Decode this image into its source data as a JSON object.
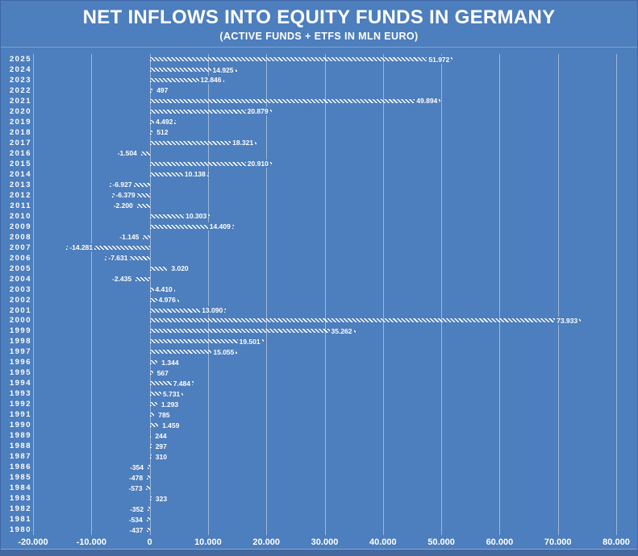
{
  "title": "NET INFLOWS INTO EQUITY FUNDS IN GERMANY",
  "subtitle": "(ACTIVE FUNDS + ETFS IN MLN EURO)",
  "colors": {
    "background": "#4d7ebd",
    "bar": "#ffffff",
    "text": "#ffffff",
    "gridline": "rgba(255,255,255,0.45)",
    "bottom_strip": "#45699e"
  },
  "chart_data": {
    "type": "bar",
    "orientation": "horizontal",
    "title": "NET INFLOWS INTO EQUITY FUNDS IN GERMANY",
    "subtitle": "(ACTIVE FUNDS + ETFS IN MLN EURO)",
    "xlabel": "",
    "ylabel": "",
    "xlim": [
      -20000,
      80000
    ],
    "grid": true,
    "categories": [
      "2025",
      "2024",
      "2023",
      "2022",
      "2021",
      "2020",
      "2019",
      "2018",
      "2017",
      "2016",
      "2015",
      "2014",
      "2013",
      "2012",
      "2011",
      "2010",
      "2009",
      "2008",
      "2007",
      "2006",
      "2005",
      "2004",
      "2003",
      "2002",
      "2001",
      "2000",
      "1999",
      "1998",
      "1997",
      "1996",
      "1995",
      "1994",
      "1993",
      "1992",
      "1991",
      "1990",
      "1989",
      "1988",
      "1987",
      "1986",
      "1985",
      "1984",
      "1983",
      "1982",
      "1981",
      "1980"
    ],
    "values": [
      51972,
      14925,
      12846,
      497,
      49894,
      20879,
      4492,
      512,
      18321,
      -1504,
      20910,
      10138,
      -6927,
      -6379,
      -2200,
      10303,
      14409,
      -1145,
      -14281,
      -7631,
      3020,
      -2435,
      4410,
      4976,
      13090,
      73933,
      35262,
      19501,
      15055,
      1344,
      567,
      7484,
      5731,
      1293,
      785,
      1459,
      244,
      297,
      310,
      -354,
      -478,
      -573,
      323,
      -352,
      -534,
      -437
    ],
    "value_labels": [
      "51.972",
      "14.925",
      "12.846",
      "497",
      "49.894",
      "20.879",
      "4.492",
      "512",
      "18.321",
      "-1.504",
      "20.910",
      "10.138",
      "-6.927",
      "-6.379",
      "-2.200",
      "10.303",
      "14.409",
      "-1.145",
      "-14.281",
      "-7.631",
      "3.020",
      "-2.435",
      "4.410",
      "4.976",
      "13.090",
      "73.933",
      "35.262",
      "19.501",
      "15.055",
      "1.344",
      "567",
      "7.484",
      "5.731",
      "1.293",
      "785",
      "1.459",
      "244",
      "297",
      "310",
      "-354",
      "-478",
      "-573",
      "323",
      "-352",
      "-534",
      "-437"
    ],
    "x_tick_values": [
      -20000,
      -10000,
      0,
      10000,
      20000,
      30000,
      40000,
      50000,
      60000,
      70000,
      80000
    ],
    "x_tick_labels": [
      "-20.000",
      "-10.000",
      "0",
      "10.000",
      "20.000",
      "30.000",
      "40.000",
      "50.000",
      "60.000",
      "70.000",
      "80.000"
    ]
  }
}
